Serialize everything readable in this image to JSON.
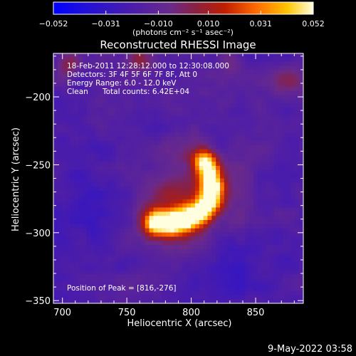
{
  "chart_data": {
    "type": "heatmap",
    "title": "Reconstructed RHESSI Image",
    "xlabel": "Heliocentric X (arcsec)",
    "ylabel": "Heliocentric Y (arcsec)",
    "xlim": [
      693,
      887
    ],
    "ylim": [
      -352,
      -168
    ],
    "x_ticks": [
      700,
      750,
      800,
      850
    ],
    "y_ticks": [
      -200,
      -250,
      -300,
      -350
    ],
    "x_tick_labels": [
      "700",
      "750",
      "800",
      "850"
    ],
    "y_tick_labels": [
      "−200",
      "−250",
      "−300",
      "−350"
    ],
    "colorbar": {
      "range": [
        -0.052,
        0.052
      ],
      "ticks": [
        -0.052,
        -0.031,
        -0.01,
        0.01,
        0.031,
        0.052
      ],
      "tick_labels": [
        "−0.052",
        "−0.031",
        "−0.010",
        "0.010",
        "0.031",
        "0.052"
      ],
      "units_label": "(photons cm⁻² s⁻¹ asec⁻²)"
    },
    "colormap": [
      "#0000ff",
      "#4b1ba8",
      "#5a2a9a",
      "#7a2a6a",
      "#b02800",
      "#ff7800",
      "#ffc800",
      "#ffffb0"
    ],
    "annotations": {
      "time_range": "18-Feb-2011 12:28:12.000 to 12:30:08.000",
      "detectors": "Detectors: 3F 4F 5F 6F 7F 8F, Att 0",
      "energy": "Energy Range: 6.0 - 12.0 keV",
      "clean": "Clean",
      "counts": "Total counts: 6.42E+04",
      "peak": "Position of Peak = [816,-276]"
    },
    "peak_position": [
      816,
      -276
    ],
    "peak_value": 0.052,
    "source_shape": "arc from about (773,-293) through (814,-283) to (812,-250)"
  },
  "footer_date": "9-May-2022 03:58"
}
